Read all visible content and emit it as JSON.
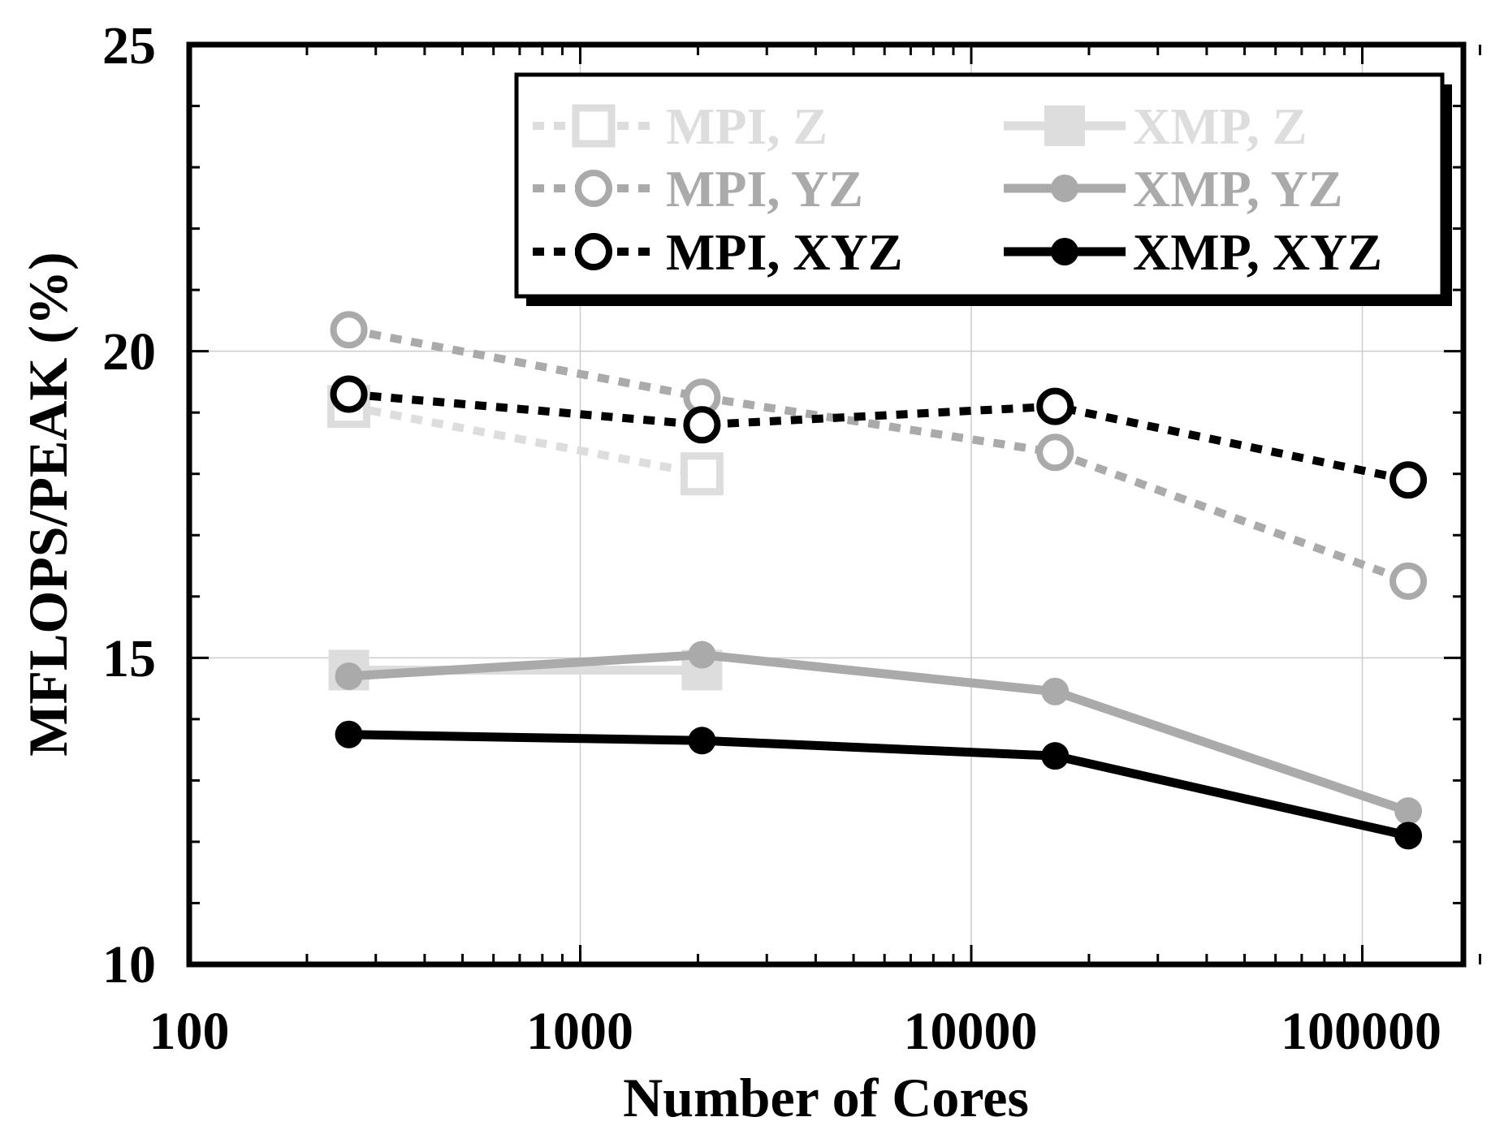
{
  "chart_data": {
    "type": "line",
    "x_scale": "log",
    "xlabel": "Number of Cores",
    "ylabel": "MFLOPS/PEAK (%)",
    "xlim": [
      100,
      200000
    ],
    "ylim": [
      10,
      25
    ],
    "x_ticks": [
      100,
      1000,
      10000,
      100000
    ],
    "x_tick_labels": [
      "100",
      "1000",
      "10000",
      "100000"
    ],
    "y_ticks": [
      10,
      15,
      20,
      25
    ],
    "y_tick_labels": [
      "10",
      "15",
      "20",
      "25"
    ],
    "grid": true,
    "legend_position": "top-right",
    "series": [
      {
        "name": "MPI, Z",
        "x": [
          256,
          2048
        ],
        "values": [
          19.1,
          18.0
        ],
        "color": "#dddddd",
        "dash": "dotted",
        "marker": "open-square"
      },
      {
        "name": "XMP, Z",
        "x": [
          256,
          2048
        ],
        "values": [
          14.8,
          14.8
        ],
        "color": "#dddddd",
        "dash": "solid",
        "marker": "filled-square"
      },
      {
        "name": "MPI, YZ",
        "x": [
          256,
          2048,
          16384,
          131072
        ],
        "values": [
          20.35,
          19.25,
          18.35,
          16.25
        ],
        "color": "#aaaaaa",
        "dash": "dotted",
        "marker": "open-circle"
      },
      {
        "name": "XMP, YZ",
        "x": [
          256,
          2048,
          16384,
          131072
        ],
        "values": [
          14.7,
          15.05,
          14.45,
          12.5
        ],
        "color": "#aaaaaa",
        "dash": "solid",
        "marker": "filled-circle"
      },
      {
        "name": "MPI, XYZ",
        "x": [
          256,
          2048,
          16384,
          131072
        ],
        "values": [
          19.3,
          18.8,
          19.1,
          17.9
        ],
        "color": "#000000",
        "dash": "dotted",
        "marker": "open-circle"
      },
      {
        "name": "XMP, XYZ",
        "x": [
          256,
          2048,
          16384,
          131072
        ],
        "values": [
          13.75,
          13.65,
          13.4,
          12.1
        ],
        "color": "#000000",
        "dash": "solid",
        "marker": "filled-circle"
      }
    ]
  }
}
